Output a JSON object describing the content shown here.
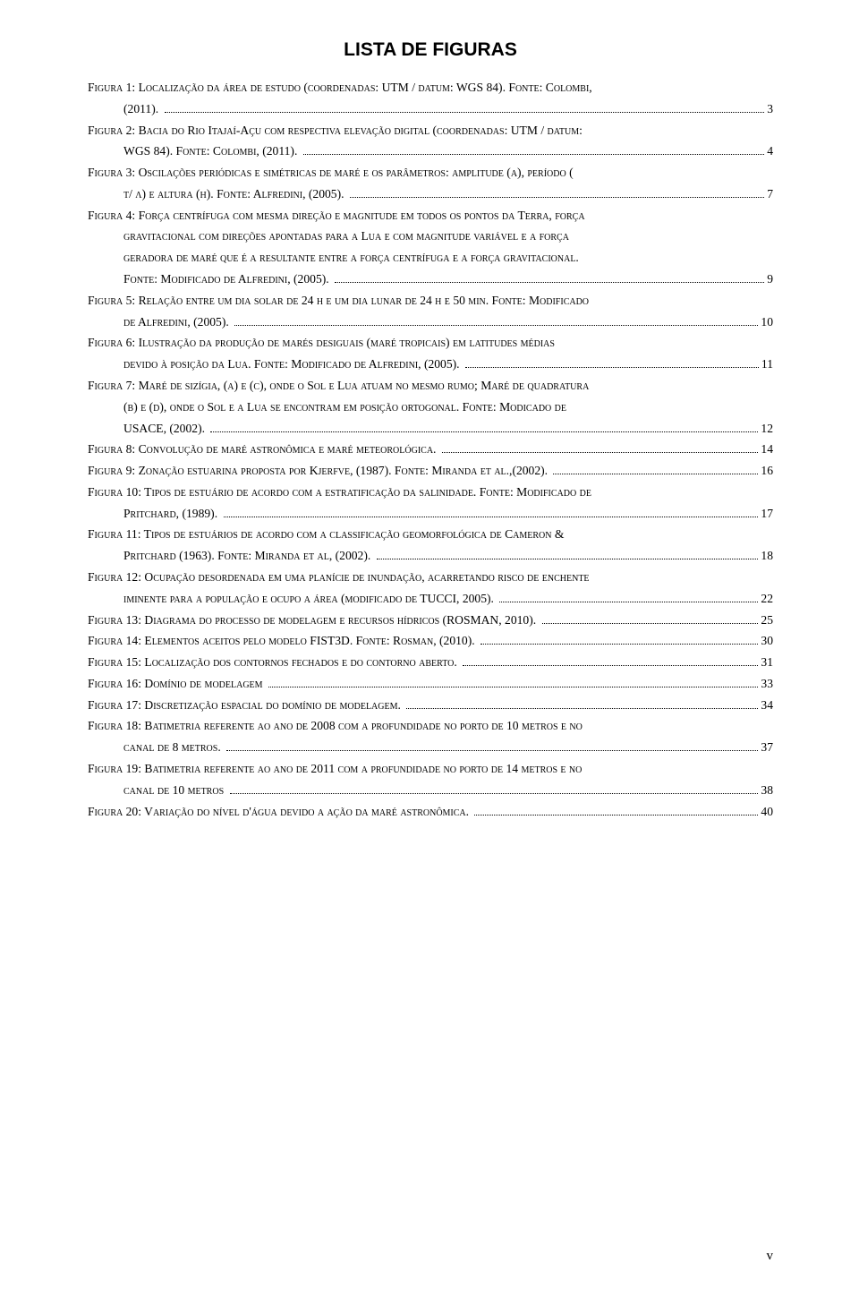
{
  "title": "LISTA DE FIGURAS",
  "page_number": "v",
  "entries": [
    {
      "lines": [
        {
          "indent": false,
          "text_sc": "Figura 1: Localização da área de estudo (coordenadas: UTM / datum: WGS 84). Fonte: Colombi,"
        },
        {
          "indent": true,
          "text_sc": "(2011). ",
          "page": "3"
        }
      ]
    },
    {
      "lines": [
        {
          "indent": false,
          "text_sc": "Figura 2: Bacia do Rio Itajaí-Açu com respectiva elevação digital (coordenadas: UTM / datum:"
        },
        {
          "indent": true,
          "text_sc": "WGS 84). Fonte: Colombi, (2011). ",
          "page": "4"
        }
      ]
    },
    {
      "lines": [
        {
          "indent": false,
          "text_sc": "Figura 3: Oscilações periódicas e simétricas de maré e os parâmetros: amplitude (a), período ("
        },
        {
          "indent": true,
          "text_sc": "t/ λ) e altura (h). Fonte: Alfredini, (2005). ",
          "page": "7"
        }
      ]
    },
    {
      "lines": [
        {
          "indent": false,
          "text_sc": "Figura 4: Força centrífuga com mesma direção e magnitude em todos os pontos da Terra, força"
        },
        {
          "indent": true,
          "text_sc": "gravitacional com direções apontadas para a Lua e com magnitude variável e a força"
        },
        {
          "indent": true,
          "text_sc": "geradora de maré que é a resultante entre a força centrífuga e a força gravitacional."
        },
        {
          "indent": true,
          "text_sc": "Fonte: Modificado de Alfredini, (2005). ",
          "page": "9"
        }
      ]
    },
    {
      "lines": [
        {
          "indent": false,
          "text_sc": "Figura 5: Relação entre um dia solar de 24 h e um dia lunar de 24 h e 50 min. Fonte: Modificado"
        },
        {
          "indent": true,
          "text_sc": "de Alfredini, (2005). ",
          "page": "10"
        }
      ]
    },
    {
      "lines": [
        {
          "indent": false,
          "text_sc": "Figura 6: Ilustração da produção de marés desiguais (maré tropicais) em latitudes médias"
        },
        {
          "indent": true,
          "text_sc": "devido à posição da Lua. Fonte: Modificado de Alfredini, (2005). ",
          "page": "11"
        }
      ]
    },
    {
      "lines": [
        {
          "indent": false,
          "text_sc": "Figura 7: Maré de sizígia, (a) e (c), onde o Sol e Lua atuam no mesmo rumo; Maré de quadratura"
        },
        {
          "indent": true,
          "text_sc": "(b) e (d), onde o Sol e a Lua se encontram em posição ortogonal. Fonte: Modicado de"
        },
        {
          "indent": true,
          "text_sc": "USACE, (2002). ",
          "page": "12"
        }
      ]
    },
    {
      "lines": [
        {
          "indent": false,
          "text_sc": "Figura 8: Convolução de maré astronômica e maré meteorológica. ",
          "page": "14"
        }
      ]
    },
    {
      "lines": [
        {
          "indent": false,
          "text_sc": "Figura 9: Zonação estuarina proposta por Kjerfve, (1987). Fonte: Miranda et al.,(2002). ",
          "page": "16"
        }
      ]
    },
    {
      "lines": [
        {
          "indent": false,
          "text_sc": "Figura 10: Tipos de estuário de acordo com a estratificação da salinidade. Fonte: Modificado de"
        },
        {
          "indent": true,
          "text_sc": "Pritchard, (1989). ",
          "page": "17"
        }
      ]
    },
    {
      "lines": [
        {
          "indent": false,
          "text_sc": "Figura 11: Tipos de estuários de acordo com a classificação geomorfológica de Cameron &"
        },
        {
          "indent": true,
          "text_sc": "Pritchard (1963). Fonte: Miranda et al, (2002). ",
          "page": "18"
        }
      ]
    },
    {
      "lines": [
        {
          "indent": false,
          "text_sc": "Figura 12: Ocupação desordenada em uma planície de inundação, acarretando risco de enchente"
        },
        {
          "indent": true,
          "text_sc": "iminente para a população e ocupo a área (modificado de TUCCI, 2005). ",
          "page": "22"
        }
      ]
    },
    {
      "lines": [
        {
          "indent": false,
          "text_sc": "Figura 13: Diagrama do processo de modelagem e recursos hídricos (ROSMAN, 2010). ",
          "page": "25"
        }
      ]
    },
    {
      "lines": [
        {
          "indent": false,
          "text_sc": "Figura 14: Elementos aceitos pelo modelo FIST3D. Fonte: Rosman, (2010). ",
          "page": "30"
        }
      ]
    },
    {
      "lines": [
        {
          "indent": false,
          "text_sc": "Figura 15: Localização dos contornos fechados e do contorno aberto. ",
          "page": "31"
        }
      ]
    },
    {
      "lines": [
        {
          "indent": false,
          "text_sc": "Figura 16: Domínio de modelagem ",
          "page": "33"
        }
      ]
    },
    {
      "lines": [
        {
          "indent": false,
          "text_sc": "Figura 17: Discretização espacial do domínio de modelagem. ",
          "page": "34"
        }
      ]
    },
    {
      "lines": [
        {
          "indent": false,
          "text_sc": "Figura 18: Batimetria referente ao ano de 2008 com a profundidade no porto de 10 metros e no"
        },
        {
          "indent": true,
          "text_sc": "canal de 8 metros. ",
          "page": "37"
        }
      ]
    },
    {
      "lines": [
        {
          "indent": false,
          "text_sc": "Figura 19: Batimetria referente ao ano de 2011 com a profundidade no porto de 14 metros e no"
        },
        {
          "indent": true,
          "text_sc": "canal de 10 metros ",
          "page": "38"
        }
      ]
    },
    {
      "lines": [
        {
          "indent": false,
          "text_sc": "Figura 20: Variação do nível d'água devido a ação da maré astronômica. ",
          "page": "40"
        }
      ]
    }
  ]
}
